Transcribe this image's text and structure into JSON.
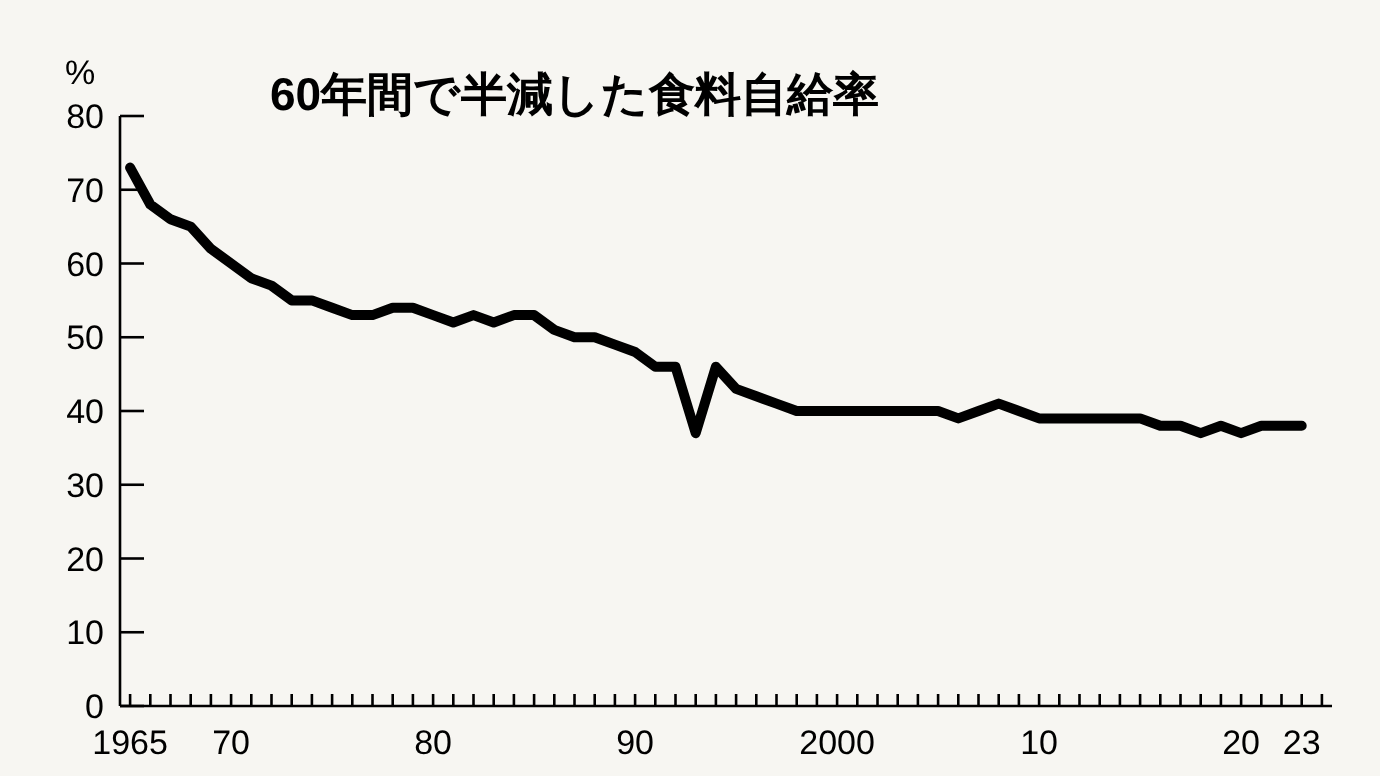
{
  "chart_data": {
    "type": "line",
    "title": "60年間で半減した食料自給率",
    "ylabel": "%",
    "x": [
      1965,
      1966,
      1967,
      1968,
      1969,
      1970,
      1971,
      1972,
      1973,
      1974,
      1975,
      1976,
      1977,
      1978,
      1979,
      1980,
      1981,
      1982,
      1983,
      1984,
      1985,
      1986,
      1987,
      1988,
      1989,
      1990,
      1991,
      1992,
      1993,
      1994,
      1995,
      1996,
      1997,
      1998,
      1999,
      2000,
      2001,
      2002,
      2003,
      2004,
      2005,
      2006,
      2007,
      2008,
      2009,
      2010,
      2011,
      2012,
      2013,
      2014,
      2015,
      2016,
      2017,
      2018,
      2019,
      2020,
      2021,
      2022,
      2023
    ],
    "series": [
      {
        "color": "#000000",
        "values": [
          73,
          68,
          66,
          65,
          62,
          60,
          58,
          57,
          55,
          55,
          54,
          53,
          53,
          54,
          54,
          53,
          52,
          53,
          52,
          53,
          53,
          51,
          50,
          50,
          49,
          48,
          46,
          46,
          37,
          46,
          43,
          42,
          41,
          40,
          40,
          40,
          40,
          40,
          40,
          40,
          40,
          39,
          40,
          41,
          40,
          39,
          39,
          39,
          39,
          39,
          39,
          38,
          38,
          37,
          38,
          37,
          38,
          38,
          38
        ]
      }
    ],
    "xlim": [
      1964.5,
      2024.5
    ],
    "ylim": [
      0,
      80
    ],
    "yticks": [
      0,
      10,
      20,
      30,
      40,
      50,
      60,
      70,
      80
    ],
    "xticks": [
      {
        "value": 1965,
        "label": "1965"
      },
      {
        "value": 1966,
        "label": null
      },
      {
        "value": 1967,
        "label": null
      },
      {
        "value": 1968,
        "label": null
      },
      {
        "value": 1969,
        "label": null
      },
      {
        "value": 1970,
        "label": "70"
      },
      {
        "value": 1971,
        "label": null
      },
      {
        "value": 1972,
        "label": null
      },
      {
        "value": 1973,
        "label": null
      },
      {
        "value": 1974,
        "label": null
      },
      {
        "value": 1975,
        "label": null
      },
      {
        "value": 1976,
        "label": null
      },
      {
        "value": 1977,
        "label": null
      },
      {
        "value": 1978,
        "label": null
      },
      {
        "value": 1979,
        "label": null
      },
      {
        "value": 1980,
        "label": "80"
      },
      {
        "value": 1981,
        "label": null
      },
      {
        "value": 1982,
        "label": null
      },
      {
        "value": 1983,
        "label": null
      },
      {
        "value": 1984,
        "label": null
      },
      {
        "value": 1985,
        "label": null
      },
      {
        "value": 1986,
        "label": null
      },
      {
        "value": 1987,
        "label": null
      },
      {
        "value": 1988,
        "label": null
      },
      {
        "value": 1989,
        "label": null
      },
      {
        "value": 1990,
        "label": "90"
      },
      {
        "value": 1991,
        "label": null
      },
      {
        "value": 1992,
        "label": null
      },
      {
        "value": 1993,
        "label": null
      },
      {
        "value": 1994,
        "label": null
      },
      {
        "value": 1995,
        "label": null
      },
      {
        "value": 1996,
        "label": null
      },
      {
        "value": 1997,
        "label": null
      },
      {
        "value": 1998,
        "label": null
      },
      {
        "value": 1999,
        "label": null
      },
      {
        "value": 2000,
        "label": "2000"
      },
      {
        "value": 2001,
        "label": null
      },
      {
        "value": 2002,
        "label": null
      },
      {
        "value": 2003,
        "label": null
      },
      {
        "value": 2004,
        "label": null
      },
      {
        "value": 2005,
        "label": null
      },
      {
        "value": 2006,
        "label": null
      },
      {
        "value": 2007,
        "label": null
      },
      {
        "value": 2008,
        "label": null
      },
      {
        "value": 2009,
        "label": null
      },
      {
        "value": 2010,
        "label": "10"
      },
      {
        "value": 2011,
        "label": null
      },
      {
        "value": 2012,
        "label": null
      },
      {
        "value": 2013,
        "label": null
      },
      {
        "value": 2014,
        "label": null
      },
      {
        "value": 2015,
        "label": null
      },
      {
        "value": 2016,
        "label": null
      },
      {
        "value": 2017,
        "label": null
      },
      {
        "value": 2018,
        "label": null
      },
      {
        "value": 2019,
        "label": null
      },
      {
        "value": 2020,
        "label": "20"
      },
      {
        "value": 2021,
        "label": null
      },
      {
        "value": 2022,
        "label": null
      },
      {
        "value": 2023,
        "label": "23"
      },
      {
        "value": 2024,
        "label": null
      }
    ],
    "grid": false,
    "marker": "none",
    "line_style": "solid"
  }
}
